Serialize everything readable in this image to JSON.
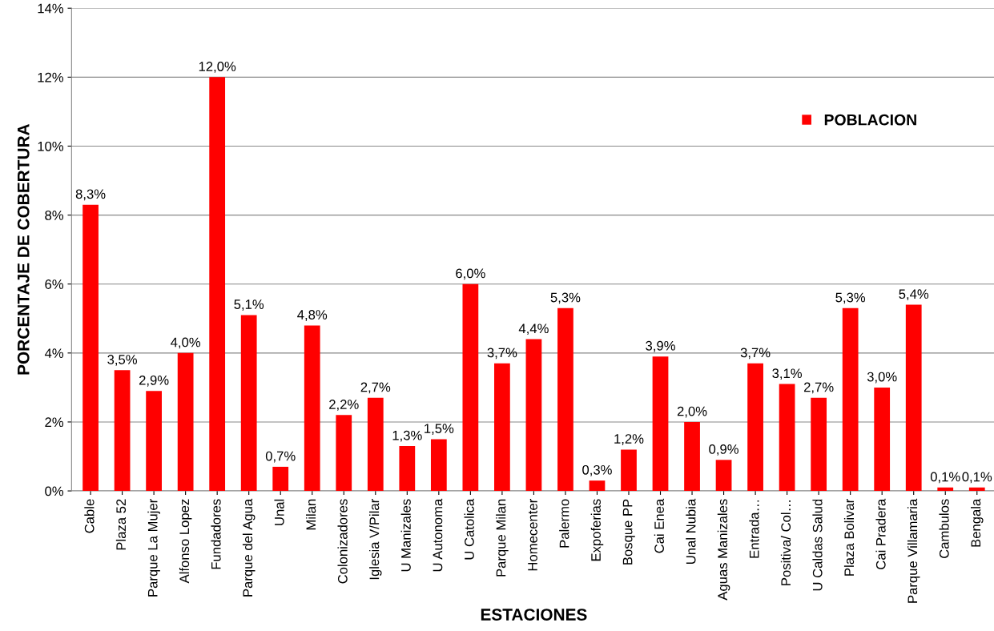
{
  "chart_data": {
    "type": "bar",
    "xlabel": "ESTACIONES",
    "ylabel": "PORCENTAJE DE COBERTURA",
    "categories": [
      "Cable",
      "Plaza 52",
      "Parque La Mujer",
      "Alfonso Lopez",
      "Fundadores",
      "Parque del Agua",
      "Unal",
      "Milan",
      "Colonizadores",
      "Iglesia V/Pilar",
      "U Manizales",
      "U Autonoma",
      "U Catolica",
      "Parque Milan",
      "Homecenter",
      "Palermo",
      "Expoferias",
      "Bosque PP",
      "Cai Enea",
      "Unal Nubia",
      "Aguas Manizales",
      "Entrada…",
      "Positiva/ Col…",
      "U Caldas Salud",
      "Plaza Bolivar",
      "Cai Pradera",
      "Parque Villamaria",
      "Cambulos",
      "Bengala"
    ],
    "series": [
      {
        "name": "POBLACION",
        "color": "#ff0000",
        "values": [
          8.3,
          3.5,
          2.9,
          4.0,
          12.0,
          5.1,
          0.7,
          4.8,
          2.2,
          2.7,
          1.3,
          1.5,
          6.0,
          3.7,
          4.4,
          5.3,
          0.3,
          1.2,
          3.9,
          2.0,
          0.9,
          3.7,
          3.1,
          2.7,
          5.3,
          3.0,
          5.4,
          0.1,
          0.1
        ],
        "value_labels": [
          "8,3%",
          "3,5%",
          "2,9%",
          "4,0%",
          "12,0%",
          "5,1%",
          "0,7%",
          "4,8%",
          "2,2%",
          "2,7%",
          "1,3%",
          "1,5%",
          "6,0%",
          "3,7%",
          "4,4%",
          "5,3%",
          "0,3%",
          "1,2%",
          "3,9%",
          "2,0%",
          "0,9%",
          "3,7%",
          "3,1%",
          "2,7%",
          "5,3%",
          "3,0%",
          "5,4%",
          "0,1%",
          "0,1%"
        ]
      }
    ],
    "ylim": [
      0,
      14
    ],
    "yticks": [
      {
        "value": 0,
        "label": "0%"
      },
      {
        "value": 2,
        "label": "2%"
      },
      {
        "value": 4,
        "label": "4%"
      },
      {
        "value": 6,
        "label": "6%"
      },
      {
        "value": 8,
        "label": "8%"
      },
      {
        "value": 10,
        "label": "10%"
      },
      {
        "value": 12,
        "label": "12%"
      },
      {
        "value": 14,
        "label": "14%"
      }
    ],
    "grid": "y",
    "legend": "upper right"
  }
}
